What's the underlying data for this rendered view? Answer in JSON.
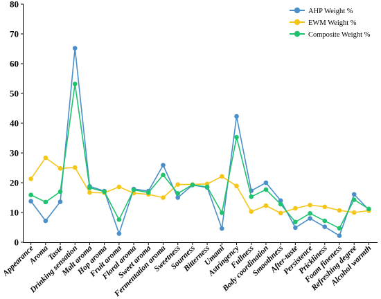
{
  "chart_data": {
    "type": "line",
    "title": "",
    "xlabel": "",
    "ylabel": "",
    "ylim": [
      0,
      80
    ],
    "yticks": [
      0,
      10,
      20,
      30,
      40,
      50,
      60,
      70,
      80
    ],
    "grid": false,
    "legend_position": "top-right",
    "categories": [
      "Appearance",
      "Aroma",
      "Taste",
      "Drinking sensation",
      "Malt aroma",
      "Hop aroma",
      "Fruit aroma",
      "Floral aroma",
      "Sweet aroma",
      "Fermentation aroma",
      "Sweetness",
      "Sourness",
      "Bitterness",
      "Umami",
      "Astringency",
      "Fullness",
      "Body coordination",
      "Smoothness",
      "After-taste",
      "Persistence",
      "Prickliness",
      "Foam fineness",
      "Refreshing degree",
      "Alcohol warmth"
    ],
    "series": [
      {
        "name": "AHP Weight %",
        "color": "#4a8fc9",
        "values": [
          13.8,
          7.2,
          13.6,
          65.2,
          18.8,
          17.2,
          2.9,
          17.9,
          17.2,
          25.9,
          15.0,
          19.2,
          18.4,
          4.6,
          42.3,
          17.3,
          20.0,
          14.0,
          4.9,
          8.0,
          5.2,
          2.2,
          16.1,
          10.9
        ]
      },
      {
        "name": "EWM Weight %",
        "color": "#f5c518",
        "values": [
          21.3,
          28.4,
          24.8,
          25.1,
          16.7,
          16.6,
          18.6,
          16.5,
          16.1,
          15.0,
          19.4,
          19.4,
          19.6,
          22.1,
          18.9,
          10.3,
          12.3,
          9.8,
          11.4,
          12.5,
          11.9,
          10.7,
          10.0,
          10.6
        ]
      },
      {
        "name": "Composite Weight %",
        "color": "#1fc26e",
        "values": [
          15.9,
          13.5,
          17.0,
          53.2,
          18.3,
          17.0,
          7.6,
          17.6,
          16.7,
          22.6,
          16.4,
          19.3,
          18.6,
          9.9,
          35.3,
          15.3,
          17.7,
          12.8,
          6.8,
          9.7,
          7.2,
          4.7,
          14.3,
          11.2
        ]
      }
    ]
  }
}
